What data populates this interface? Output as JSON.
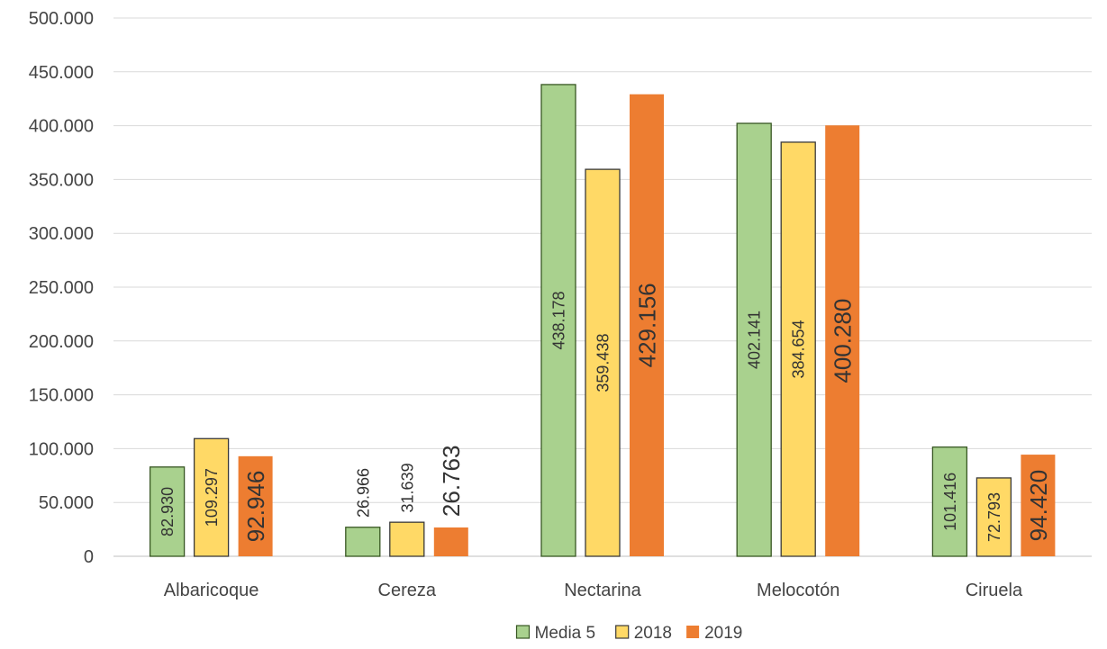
{
  "chart_data": {
    "type": "bar",
    "title": "",
    "xlabel": "",
    "ylabel": "",
    "categories": [
      "Albaricoque",
      "Cereza",
      "Nectarina",
      "Melocotón",
      "Ciruela"
    ],
    "series": [
      {
        "name": "Media 5",
        "color": "#A9D18E",
        "values": [
          82930,
          26966,
          438178,
          402141,
          101416
        ],
        "labels": [
          "82.930",
          "26.966",
          "438.178",
          "402.141",
          "101.416"
        ]
      },
      {
        "name": "2018",
        "color": "#FFD966",
        "values": [
          109297,
          31639,
          359438,
          384654,
          72793
        ],
        "labels": [
          "109.297",
          "31.639",
          "359.438",
          "384.654",
          "72.793"
        ]
      },
      {
        "name": "2019",
        "color": "#ED7D31",
        "values": [
          92946,
          26763,
          429156,
          400280,
          94420
        ],
        "labels": [
          "92.946",
          "26.763",
          "429.156",
          "400.280",
          "94.420"
        ]
      }
    ],
    "ylim": [
      0,
      500000
    ],
    "y_ticks": [
      0,
      50000,
      100000,
      150000,
      200000,
      250000,
      300000,
      350000,
      400000,
      450000,
      500000
    ],
    "y_tick_labels": [
      "0",
      "50.000",
      "100.000",
      "150.000",
      "200.000",
      "250.000",
      "300.000",
      "350.000",
      "400.000",
      "450.000",
      "500.000"
    ],
    "grid": true,
    "legend_position": "bottom"
  }
}
